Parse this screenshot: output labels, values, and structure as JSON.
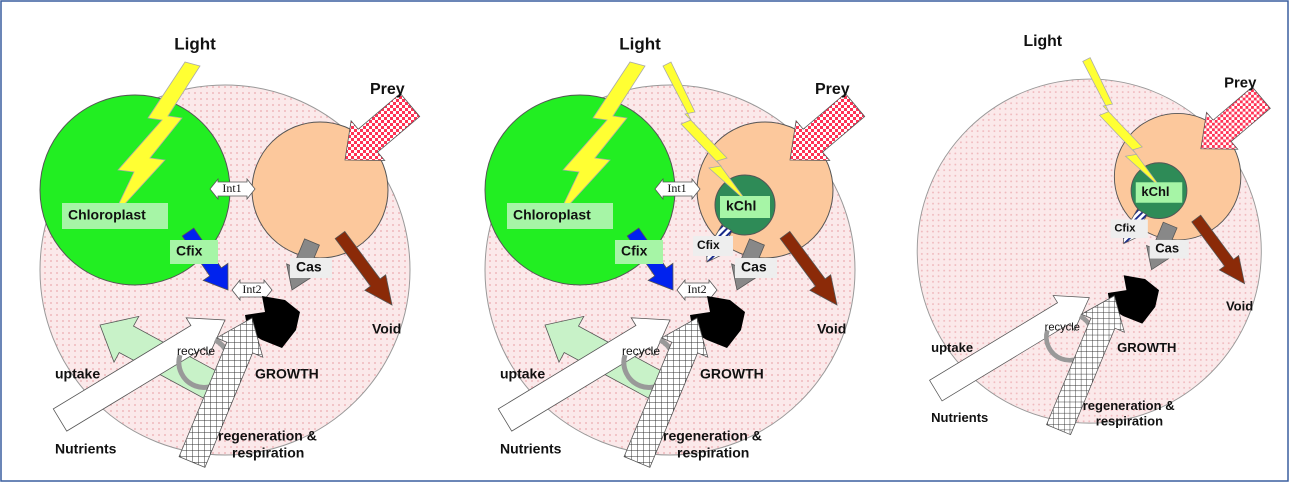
{
  "panels": [
    {
      "light": "Light",
      "prey": "Prey",
      "chloroplast": "Chloroplast",
      "cfix": "Cfix",
      "int1": "Int1",
      "int2": "Int2",
      "cas": "Cas",
      "void": "Void",
      "recycle": "recycle",
      "uptake": "uptake",
      "growth": "GROWTH",
      "nutrients": "Nutrients",
      "regeneration": [
        "regeneration &",
        "respiration"
      ]
    },
    {
      "light": "Light",
      "prey": "Prey",
      "chloroplast": "Chloroplast",
      "cfix": "Cfix",
      "int1": "Int1",
      "kchl": "kChl",
      "cfix_kchl": "Cfix",
      "int2": "Int2",
      "cas": "Cas",
      "void": "Void",
      "recycle": "recycle",
      "uptake": "uptake",
      "growth": "GROWTH",
      "nutrients": "Nutrients",
      "regeneration": [
        "regeneration &",
        "respiration"
      ]
    },
    {
      "light": "Light",
      "prey": "Prey",
      "kchl": "kChl",
      "cfix_kchl": "Cfix",
      "cas": "Cas",
      "void": "Void",
      "recycle": "recycle",
      "uptake": "uptake",
      "growth": "GROWTH",
      "nutrients": "Nutrients",
      "regeneration": [
        "regeneration &",
        "respiration"
      ]
    }
  ]
}
